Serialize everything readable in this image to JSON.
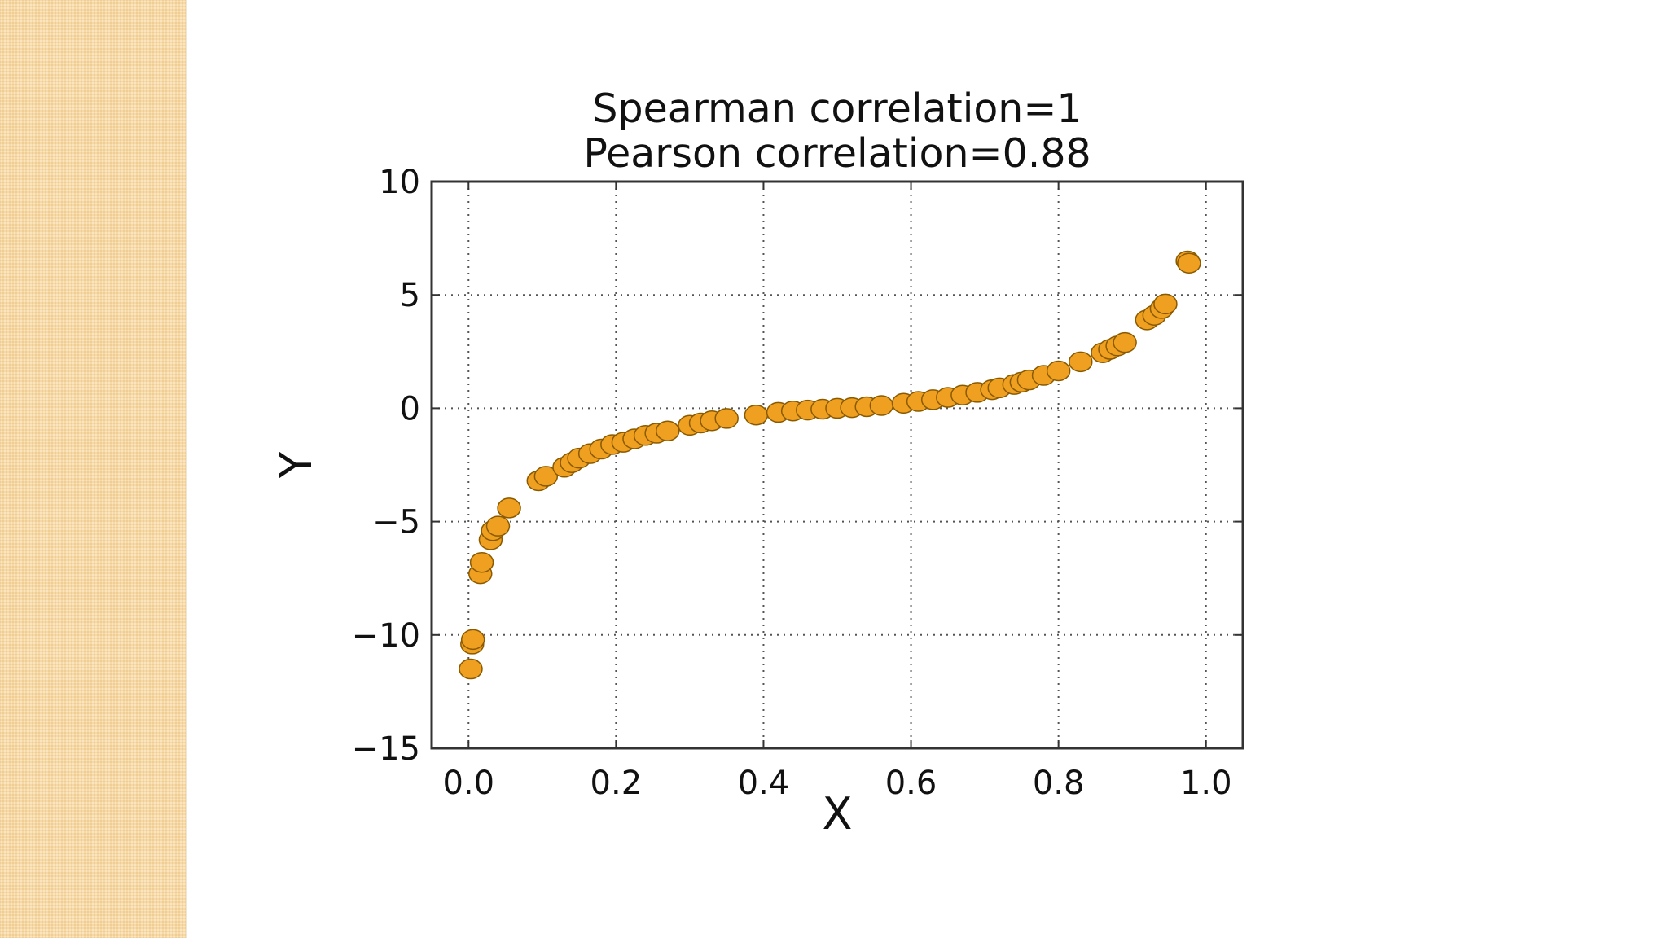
{
  "chart_data": {
    "type": "scatter",
    "title_lines": [
      "Spearman correlation=1",
      "Pearson correlation=0.88"
    ],
    "xlabel": "X",
    "ylabel": "Y",
    "xlim": [
      -0.05,
      1.05
    ],
    "ylim": [
      -15,
      10
    ],
    "xticks": [
      0.0,
      0.2,
      0.4,
      0.6,
      0.8,
      1.0
    ],
    "xtick_labels": [
      "0.0",
      "0.2",
      "0.4",
      "0.6",
      "0.8",
      "1.0"
    ],
    "yticks": [
      -15,
      -10,
      -5,
      0,
      5,
      10
    ],
    "ytick_labels": [
      "−15",
      "−10",
      "−5",
      "0",
      "5",
      "10"
    ],
    "grid": true,
    "marker_color": "#f0a020",
    "marker_edge": "#8a5a00",
    "series": [
      {
        "x": [
          0.003,
          0.005,
          0.006,
          0.016,
          0.018,
          0.03,
          0.033,
          0.04,
          0.055,
          0.095,
          0.105,
          0.13,
          0.14,
          0.15,
          0.165,
          0.18,
          0.195,
          0.21,
          0.225,
          0.24,
          0.255,
          0.27,
          0.3,
          0.315,
          0.33,
          0.35,
          0.39,
          0.42,
          0.44,
          0.46,
          0.48,
          0.5,
          0.52,
          0.54,
          0.56,
          0.59,
          0.61,
          0.63,
          0.65,
          0.67,
          0.69,
          0.71,
          0.72,
          0.74,
          0.75,
          0.76,
          0.78,
          0.8,
          0.83,
          0.86,
          0.87,
          0.88,
          0.89,
          0.92,
          0.93,
          0.94,
          0.945,
          0.975,
          0.977
        ],
        "y": [
          -11.5,
          -10.4,
          -10.2,
          -7.3,
          -6.8,
          -5.8,
          -5.4,
          -5.2,
          -4.4,
          -3.2,
          -3.0,
          -2.6,
          -2.4,
          -2.2,
          -2.0,
          -1.8,
          -1.6,
          -1.5,
          -1.35,
          -1.2,
          -1.1,
          -1.0,
          -0.75,
          -0.65,
          -0.55,
          -0.45,
          -0.3,
          -0.18,
          -0.12,
          -0.08,
          -0.04,
          0.0,
          0.03,
          0.07,
          0.12,
          0.22,
          0.3,
          0.38,
          0.48,
          0.58,
          0.7,
          0.82,
          0.9,
          1.05,
          1.15,
          1.25,
          1.45,
          1.65,
          2.05,
          2.45,
          2.6,
          2.75,
          2.9,
          3.9,
          4.1,
          4.4,
          4.6,
          6.5,
          6.4
        ]
      }
    ]
  }
}
